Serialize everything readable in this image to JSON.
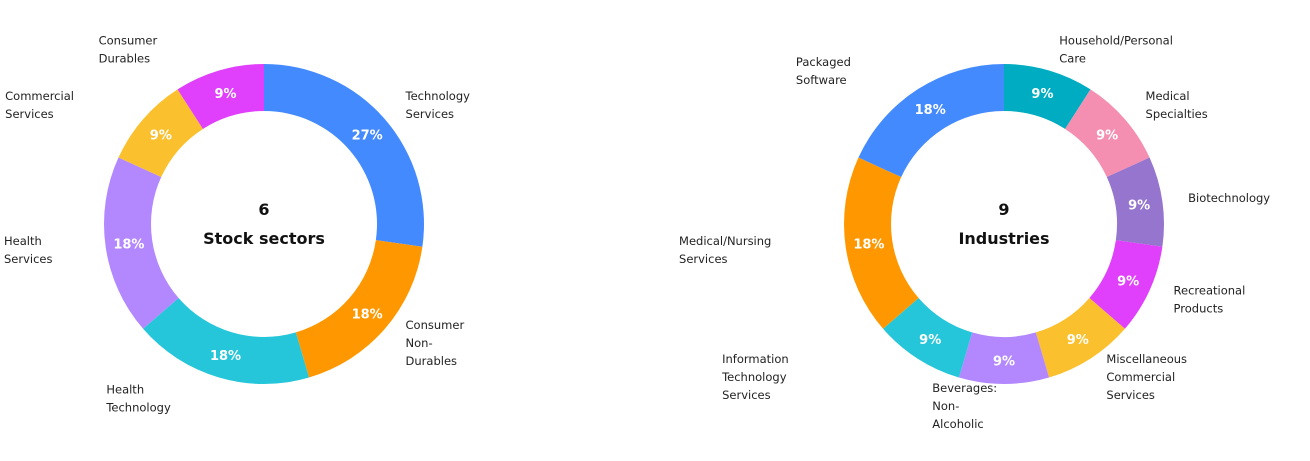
{
  "chart_data": [
    {
      "type": "pie",
      "center_count": "6",
      "center_title": "Stock sectors",
      "slices": [
        {
          "label": "Technology Services",
          "value": 27,
          "pct_label": "27%",
          "color": "#448aff",
          "label_lines": [
            "Technology",
            "Services"
          ]
        },
        {
          "label": "Consumer Non-Durables",
          "value": 18,
          "pct_label": "18%",
          "color": "#ff9800",
          "label_lines": [
            "Consumer",
            "Non-",
            "Durables"
          ]
        },
        {
          "label": "Health Technology",
          "value": 18,
          "pct_label": "18%",
          "color": "#26c6da",
          "label_lines": [
            "Health",
            "Technology"
          ]
        },
        {
          "label": "Health Services",
          "value": 18,
          "pct_label": "18%",
          "color": "#b388ff",
          "label_lines": [
            "Health",
            "Services"
          ]
        },
        {
          "label": "Commercial Services",
          "value": 9,
          "pct_label": "9%",
          "color": "#fbc02d",
          "label_lines": [
            "Commercial",
            "Services"
          ]
        },
        {
          "label": "Consumer Durables",
          "value": 9,
          "pct_label": "9%",
          "color": "#e040fb",
          "label_lines": [
            "Consumer",
            "Durables"
          ]
        }
      ]
    },
    {
      "type": "pie",
      "center_count": "9",
      "center_title": "Industries",
      "slices": [
        {
          "label": "Household/Personal Care",
          "value": 9,
          "pct_label": "9%",
          "color": "#00acc1",
          "label_lines": [
            "Household/Personal",
            "Care"
          ]
        },
        {
          "label": "Medical Specialties",
          "value": 9,
          "pct_label": "9%",
          "color": "#f48fb1",
          "label_lines": [
            "Medical",
            "Specialties"
          ]
        },
        {
          "label": "Biotechnology",
          "value": 9,
          "pct_label": "9%",
          "color": "#9575cd",
          "label_lines": [
            "Biotechnology"
          ]
        },
        {
          "label": "Recreational Products",
          "value": 9,
          "pct_label": "9%",
          "color": "#e040fb",
          "label_lines": [
            "Recreational",
            "Products"
          ]
        },
        {
          "label": "Miscellaneous Commercial Services",
          "value": 9,
          "pct_label": "9%",
          "color": "#fbc02d",
          "label_lines": [
            "Miscellaneous",
            "Commercial",
            "Services"
          ]
        },
        {
          "label": "Beverages: Non-Alcoholic",
          "value": 9,
          "pct_label": "9%",
          "color": "#b388ff",
          "label_lines": [
            "Beverages:",
            "Non-",
            "Alcoholic"
          ]
        },
        {
          "label": "Information Technology Services",
          "value": 9,
          "pct_label": "9%",
          "color": "#26c6da",
          "label_lines": [
            "Information",
            "Technology",
            "Services"
          ]
        },
        {
          "label": "Medical/Nursing Services",
          "value": 18,
          "pct_label": "18%",
          "color": "#ff9800",
          "label_lines": [
            "Medical/Nursing",
            "Services"
          ]
        },
        {
          "label": "Packaged Software",
          "value": 18,
          "pct_label": "18%",
          "color": "#448aff",
          "label_lines": [
            "Packaged",
            "Software"
          ]
        }
      ]
    }
  ]
}
